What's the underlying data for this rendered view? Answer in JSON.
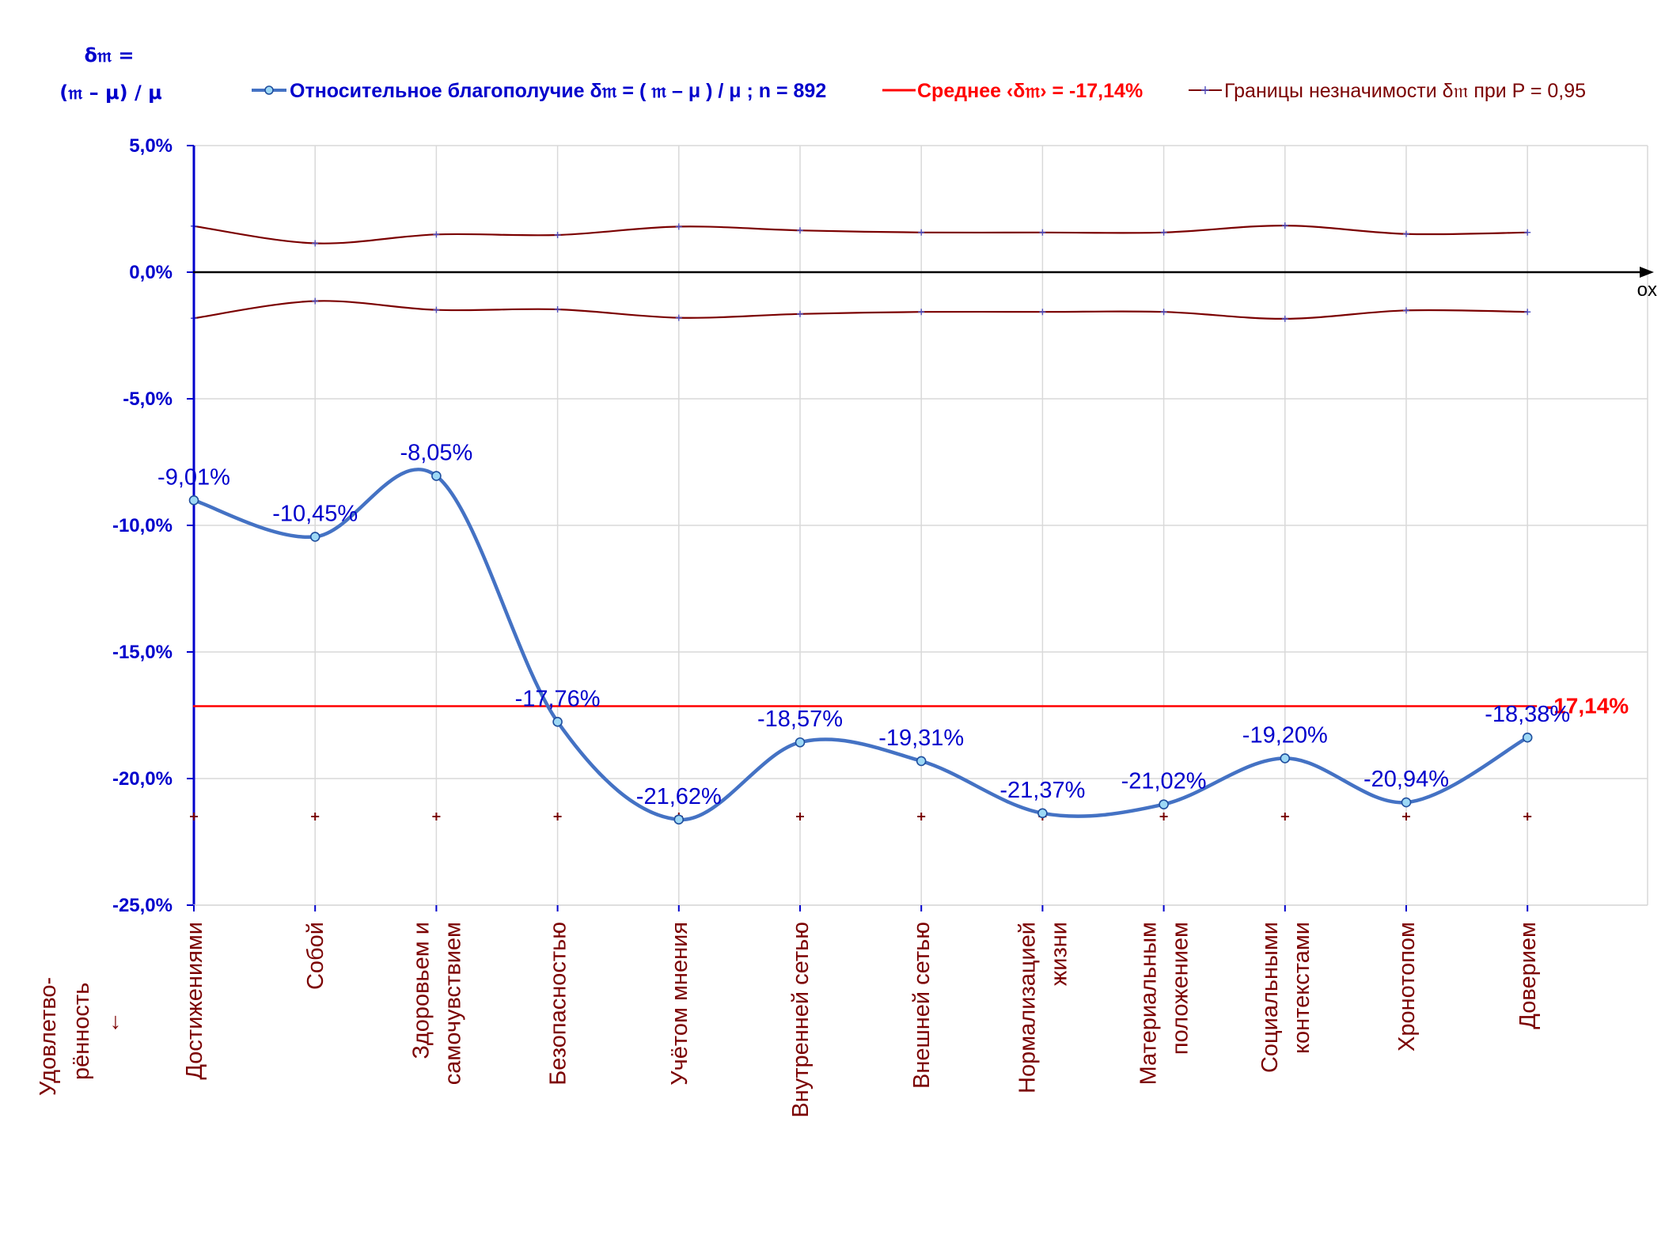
{
  "chart_data": {
    "type": "line",
    "y_axis_title": [
      "δ𝔪 =",
      "(𝔪 – μ) / μ"
    ],
    "x_axis_marker": "ox",
    "row_label": [
      "Удовлетво-",
      "рённость",
      "↓"
    ],
    "ylim": [
      -0.25,
      0.05
    ],
    "yticks": [
      0.05,
      0.0,
      -0.05,
      -0.1,
      -0.15,
      -0.2,
      -0.25
    ],
    "ytick_labels": [
      "5,0%",
      "0,0%",
      "-5,0%",
      "-10,0%",
      "-15,0%",
      "-20,0%",
      "-25,0%"
    ],
    "grid": true,
    "legend_position": "top",
    "categories": [
      [
        "Достижениями"
      ],
      [
        "Собой"
      ],
      [
        "Здоровьем и",
        "самочувствием"
      ],
      [
        "Безопасностью"
      ],
      [
        "Учётом мнения"
      ],
      [
        "Внутренней сетью"
      ],
      [
        "Внешней сетью"
      ],
      [
        "Нормализацией",
        "жизни"
      ],
      [
        "Материальным",
        "положением"
      ],
      [
        "Социальными",
        "контекстами"
      ],
      [
        "Хронотопом"
      ],
      [
        "Доверием"
      ]
    ],
    "series": [
      {
        "name": "Относительное благополучие δ𝔪 = ( 𝔪 – μ ) / μ ; n = 892",
        "color": "#4472C4",
        "values": [
          -0.0901,
          -0.1045,
          -0.0805,
          -0.1776,
          -0.2162,
          -0.1857,
          -0.1931,
          -0.2137,
          -0.2102,
          -0.192,
          -0.2094,
          -0.1838
        ],
        "labels": [
          "-9,01%",
          "-10,45%",
          "-8,05%",
          "-17,76%",
          "-21,62%",
          "-18,57%",
          "-19,31%",
          "-21,37%",
          "-21,02%",
          "-19,20%",
          "-20,94%",
          "-18,38%"
        ]
      },
      {
        "name": "Среднее ‹δ𝔪› = -17,14%",
        "color": "#FF0000",
        "value": -0.1714,
        "label": "-17,14%"
      },
      {
        "name": "Границы незначимости δ𝔪 при P = 0,95",
        "color": "#7B0000",
        "upper": [
          0.0182,
          0.0114,
          0.0149,
          0.0147,
          0.018,
          0.0165,
          0.0157,
          0.0157,
          0.0157,
          0.0184,
          0.0151,
          0.0157
        ],
        "lower": [
          -0.0182,
          -0.0114,
          -0.0149,
          -0.0147,
          -0.018,
          -0.0165,
          -0.0157,
          -0.0157,
          -0.0157,
          -0.0184,
          -0.0151,
          -0.0157
        ]
      }
    ],
    "marker_row_value": -0.215
  }
}
